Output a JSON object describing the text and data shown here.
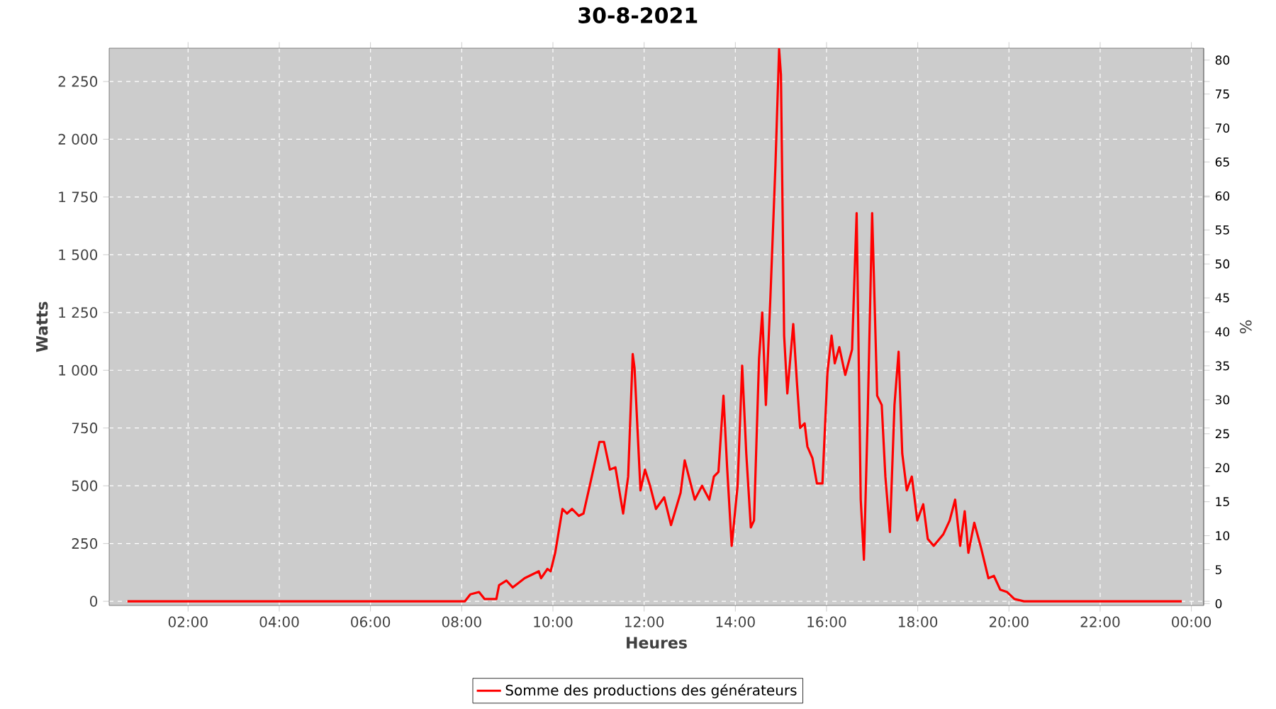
{
  "chart_data": {
    "type": "line",
    "title": "30-8-2021",
    "xlabel": "Heures",
    "ylabel": "Watts",
    "y2label": "%",
    "xlim": [
      0.27,
      24.27
    ],
    "ylim": [
      -18,
      2394
    ],
    "y2lim": [
      -0.27,
      81.75
    ],
    "xticks": [
      {
        "value": 2,
        "label": "02:00"
      },
      {
        "value": 4,
        "label": "04:00"
      },
      {
        "value": 6,
        "label": "06:00"
      },
      {
        "value": 8,
        "label": "08:00"
      },
      {
        "value": 10,
        "label": "10:00"
      },
      {
        "value": 12,
        "label": "12:00"
      },
      {
        "value": 14,
        "label": "14:00"
      },
      {
        "value": 16,
        "label": "16:00"
      },
      {
        "value": 18,
        "label": "18:00"
      },
      {
        "value": 20,
        "label": "20:00"
      },
      {
        "value": 22,
        "label": "22:00"
      },
      {
        "value": 24,
        "label": "00:00"
      }
    ],
    "yticks": [
      0,
      250,
      500,
      750,
      {
        "value": 1000,
        "label": "1 000"
      },
      {
        "value": 1250,
        "label": "1 250"
      },
      {
        "value": 1500,
        "label": "1 500"
      },
      {
        "value": 1750,
        "label": "1 750"
      },
      {
        "value": 2000,
        "label": "2 000"
      },
      {
        "value": 2250,
        "label": "2 250"
      }
    ],
    "y2ticks": [
      0,
      5,
      10,
      15,
      20,
      25,
      30,
      35,
      40,
      45,
      50,
      55,
      60,
      65,
      70,
      75,
      80
    ],
    "grid": true,
    "legend": "bottom",
    "line_style": "solid",
    "series": [
      {
        "name": "Somme des productions des  générateurs",
        "color": "#ff0000",
        "x": [
          0.67,
          8.07,
          8.19,
          8.38,
          8.5,
          8.76,
          8.82,
          8.98,
          9.12,
          9.38,
          9.69,
          9.74,
          9.88,
          9.95,
          10.05,
          10.21,
          10.31,
          10.42,
          10.57,
          10.67,
          10.83,
          11.02,
          11.12,
          11.25,
          11.37,
          11.54,
          11.65,
          11.75,
          11.79,
          11.92,
          12.02,
          12.13,
          12.26,
          12.44,
          12.59,
          12.8,
          12.89,
          13.11,
          13.27,
          13.43,
          13.53,
          13.63,
          13.74,
          13.82,
          13.92,
          14.05,
          14.15,
          14.24,
          14.34,
          14.41,
          14.52,
          14.59,
          14.67,
          14.77,
          14.88,
          14.96,
          15.0,
          15.07,
          15.14,
          15.27,
          15.35,
          15.42,
          15.52,
          15.58,
          15.69,
          15.79,
          15.91,
          16.02,
          16.11,
          16.18,
          16.28,
          16.41,
          16.56,
          16.66,
          16.75,
          16.82,
          16.9,
          17.0,
          17.11,
          17.21,
          17.29,
          17.39,
          17.49,
          17.58,
          17.66,
          17.76,
          17.87,
          17.99,
          18.12,
          18.22,
          18.35,
          18.56,
          18.7,
          18.82,
          18.93,
          19.03,
          19.11,
          19.24,
          19.39,
          19.55,
          19.67,
          19.81,
          19.96,
          20.12,
          20.33,
          23.79
        ],
        "values": [
          0,
          0,
          30,
          40,
          10,
          10,
          70,
          90,
          60,
          100,
          130,
          100,
          140,
          130,
          210,
          400,
          380,
          400,
          370,
          380,
          520,
          690,
          690,
          570,
          580,
          380,
          540,
          1070,
          1010,
          480,
          570,
          500,
          400,
          450,
          330,
          470,
          610,
          440,
          500,
          440,
          540,
          560,
          890,
          580,
          240,
          500,
          1020,
          640,
          320,
          350,
          1050,
          1250,
          850,
          1320,
          1890,
          2390,
          2280,
          1150,
          900,
          1200,
          950,
          750,
          770,
          670,
          620,
          510,
          510,
          990,
          1150,
          1030,
          1100,
          980,
          1090,
          1680,
          440,
          180,
          780,
          1680,
          890,
          850,
          540,
          300,
          850,
          1080,
          640,
          480,
          540,
          350,
          420,
          270,
          240,
          290,
          350,
          440,
          240,
          390,
          210,
          340,
          230,
          100,
          110,
          50,
          40,
          10,
          0,
          0
        ]
      }
    ]
  }
}
